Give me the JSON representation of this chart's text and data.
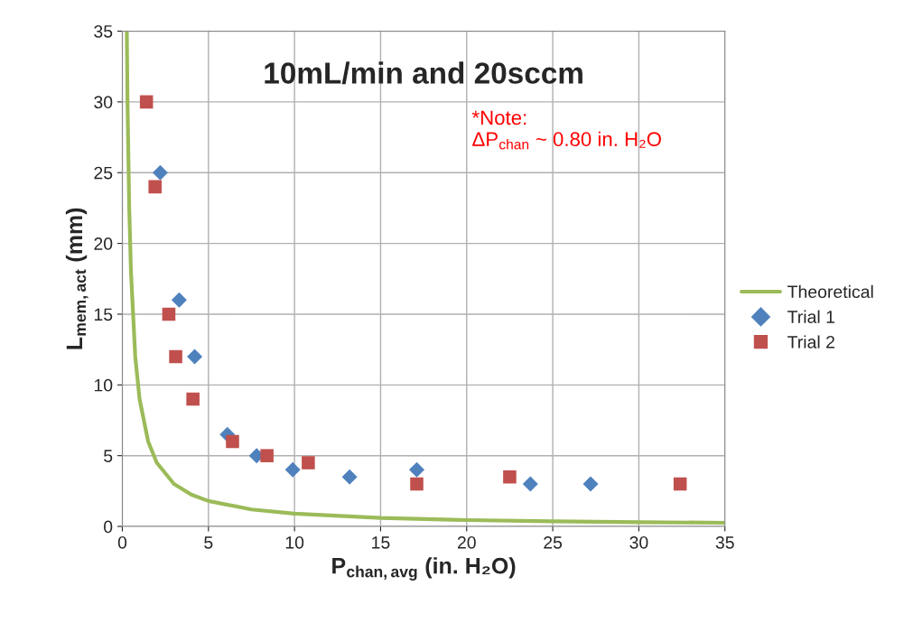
{
  "chart_data": {
    "type": "scatter",
    "title": "10mL/min and 20sccm",
    "xlabel": "P$_{chan,avg}$ (in. H₂O)",
    "ylabel": "L$_{mem,act}$ (mm)",
    "annotations": [
      "*Note:\nΔP$_{chan}$ ~ 0.80 in. H₂O"
    ],
    "xlim": [
      0,
      35
    ],
    "ylim": [
      0,
      35
    ],
    "xticks": [
      0,
      5,
      10,
      15,
      20,
      25,
      30,
      35
    ],
    "yticks": [
      0,
      5,
      10,
      15,
      20,
      25,
      30,
      35
    ],
    "grid": true,
    "legend": "right",
    "series": [
      {
        "name": "Theoretical",
        "type": "line",
        "marker": "none",
        "color": "#9bbb59",
        "x": [
          0.26,
          0.3,
          0.4,
          0.5,
          0.75,
          1,
          1.5,
          2,
          3,
          4,
          5,
          7.5,
          10,
          15,
          20,
          25,
          30,
          35
        ],
        "values": [
          35,
          30,
          22.5,
          18,
          12,
          9,
          6,
          4.5,
          3,
          2.25,
          1.8,
          1.2,
          0.9,
          0.6,
          0.45,
          0.36,
          0.3,
          0.26
        ]
      },
      {
        "name": "Trial 1",
        "marker": "diamond",
        "color": "#4f81bd",
        "x": [
          2.2,
          3.3,
          4.2,
          6.1,
          7.8,
          9.9,
          13.2,
          17.1,
          23.7,
          27.2
        ],
        "values": [
          25,
          16,
          12,
          6.5,
          5,
          4,
          3.5,
          4,
          3,
          3
        ]
      },
      {
        "name": "Trial 2",
        "marker": "square",
        "color": "#c0504d",
        "x": [
          1.4,
          1.9,
          2.7,
          3.1,
          4.1,
          6.4,
          8.4,
          10.8,
          17.1,
          22.5,
          32.4
        ],
        "values": [
          30,
          24,
          15,
          12,
          9,
          6,
          5,
          4.5,
          3,
          3.5,
          3
        ]
      }
    ]
  }
}
